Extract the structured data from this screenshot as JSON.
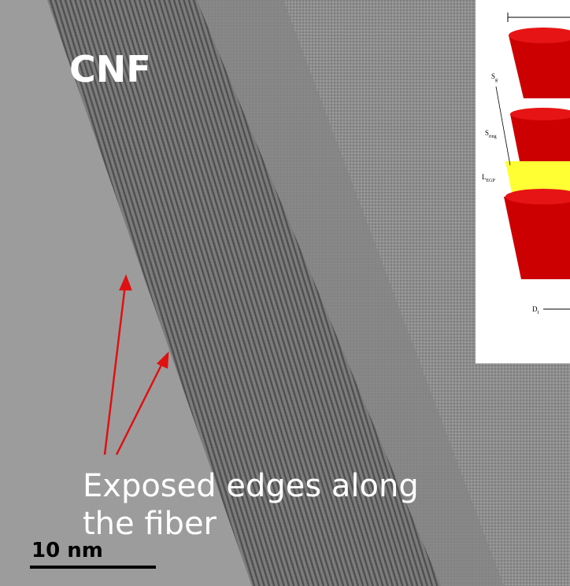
{
  "image": {
    "label": "CNF",
    "annotation": "Exposed edges along the fiber",
    "scale_bar": "10 nm"
  },
  "inset": {
    "labels": [
      {
        "main": "S",
        "sub": "g"
      },
      {
        "main": "S",
        "sub": "ring"
      },
      {
        "main": "L",
        "sub": "EGP"
      },
      {
        "main": "D",
        "sub": "I"
      }
    ]
  }
}
